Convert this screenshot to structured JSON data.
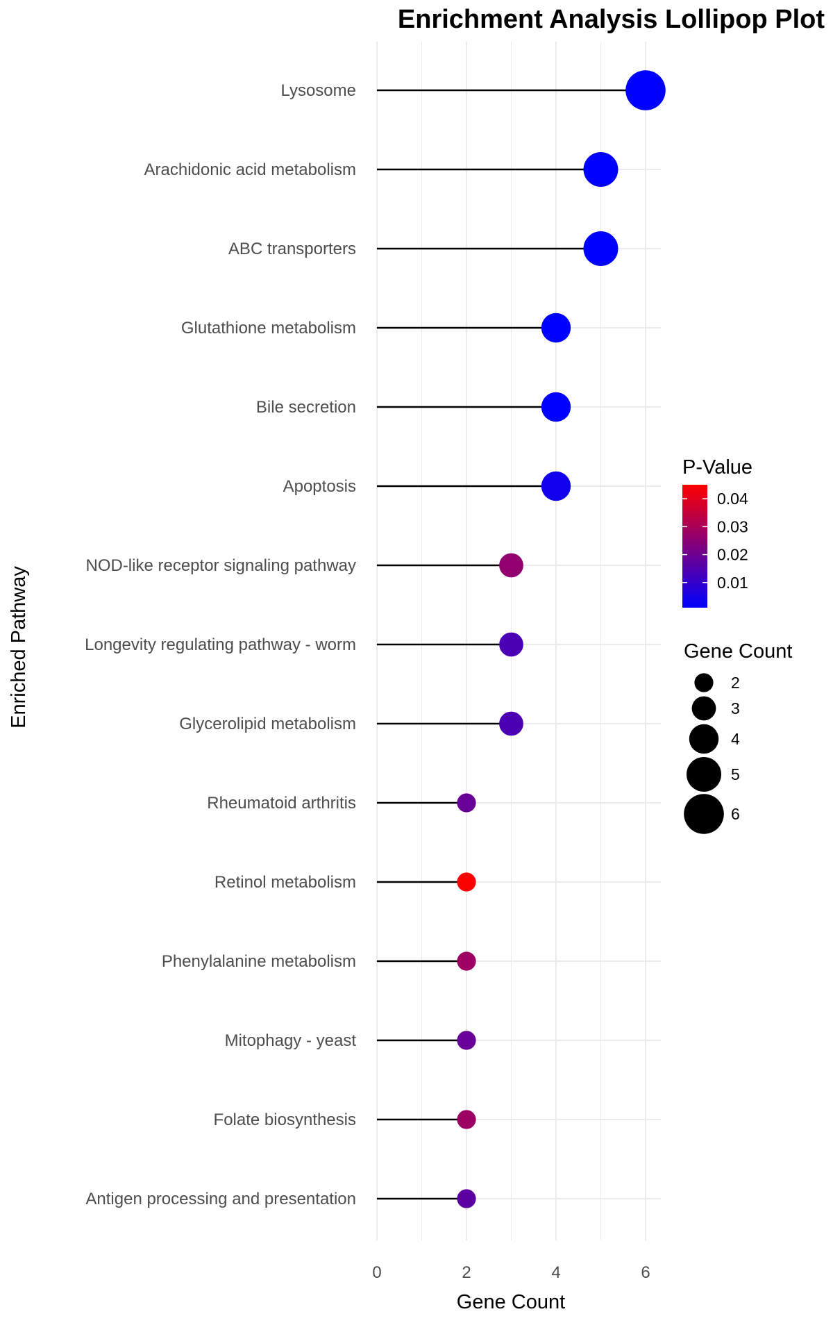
{
  "chart_data": {
    "type": "lollipop",
    "title": "Enrichment Analysis Lollipop Plot",
    "xlabel": "Gene Count",
    "ylabel": "Enriched Pathway",
    "xlim": [
      0,
      6.3
    ],
    "x_ticks": [
      0,
      2,
      4,
      6
    ],
    "grid": true,
    "legend_position": "right",
    "categories": [
      "Lysosome",
      "Arachidonic acid metabolism",
      "ABC transporters",
      "Glutathione metabolism",
      "Bile secretion",
      "Apoptosis",
      "NOD-like receptor signaling pathway",
      "Longevity regulating pathway - worm",
      "Glycerolipid metabolism",
      "Rheumatoid arthritis",
      "Retinol metabolism",
      "Phenylalanine metabolism",
      "Mitophagy - yeast",
      "Folate biosynthesis",
      "Antigen processing and presentation"
    ],
    "values": [
      6,
      5,
      5,
      4,
      4,
      4,
      3,
      3,
      3,
      2,
      2,
      2,
      2,
      2,
      2
    ],
    "p_values": [
      0.001,
      0.001,
      0.001,
      0.001,
      0.001,
      0.004,
      0.026,
      0.014,
      0.014,
      0.019,
      0.045,
      0.028,
      0.019,
      0.028,
      0.017
    ],
    "color_legend": {
      "title": "P-Value",
      "low_color": "#0000ff",
      "high_color": "#ff0000",
      "range": [
        0.001,
        0.045
      ],
      "ticks": [
        "0.04",
        "0.03",
        "0.02",
        "0.01"
      ]
    },
    "size_legend": {
      "title": "Gene Count",
      "values": [
        2,
        3,
        4,
        5,
        6
      ],
      "labels": [
        "2",
        "3",
        "4",
        "5",
        "6"
      ]
    },
    "stem_color": "#000000"
  }
}
